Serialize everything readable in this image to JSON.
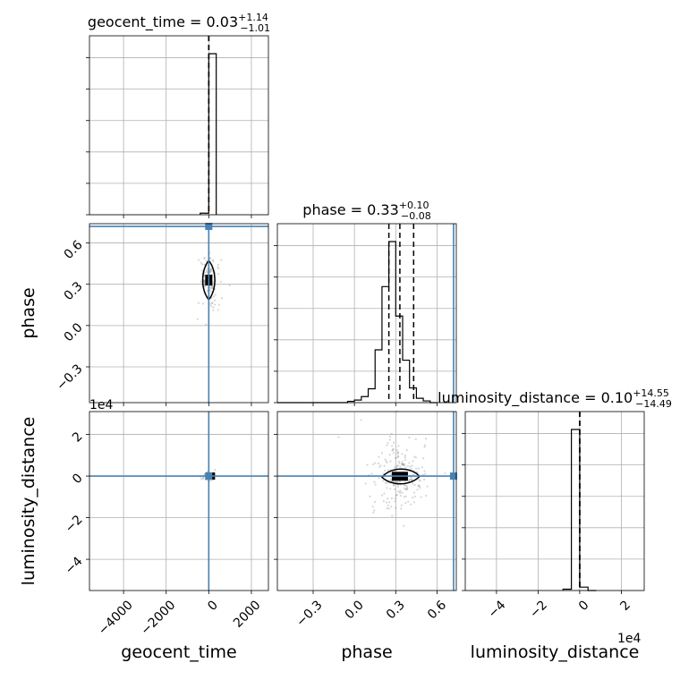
{
  "chart_data": {
    "type": "corner",
    "parameters": [
      {
        "key": "geocent_time",
        "label": "geocent_time",
        "title": {
          "name": "geocent_time",
          "median": "0.03",
          "plus": "+1.14",
          "minus": "−1.01"
        },
        "range": [
          -5600,
          2800
        ],
        "ticks": [
          -4000,
          -2000,
          0,
          2000
        ],
        "tick_labels": [
          "−4000",
          "−2000",
          "0",
          "2000"
        ],
        "truth": 0,
        "quantiles": [
          -1.01,
          0.03,
          1.14
        ],
        "hist": {
          "edges": [
            -400,
            0,
            350
          ],
          "counts": [
            0.05,
            5.05
          ]
        }
      },
      {
        "key": "phase",
        "label": "phase",
        "title": {
          "name": "phase",
          "median": "0.33",
          "plus": "+0.10",
          "minus": "−0.08"
        },
        "range": [
          -0.56,
          0.74
        ],
        "ticks": [
          -0.3,
          0.0,
          0.3,
          0.6
        ],
        "tick_labels": [
          "−0.3",
          "0.0",
          "0.3",
          "0.6"
        ],
        "truth": 0.72,
        "quantiles": [
          0.25,
          0.33,
          0.43
        ],
        "hist": {
          "edges": [
            -0.56,
            -0.05,
            0.0,
            0.05,
            0.1,
            0.15,
            0.2,
            0.25,
            0.3,
            0.35,
            0.4,
            0.45,
            0.5,
            0.55,
            0.6
          ],
          "counts": [
            0.0,
            0.03,
            0.06,
            0.14,
            0.32,
            1.22,
            2.68,
            3.72,
            2.0,
            0.98,
            0.34,
            0.1,
            0.04,
            0.0
          ]
        }
      },
      {
        "key": "luminosity_distance",
        "label": "luminosity_distance",
        "title": {
          "name": "luminosity_distance",
          "median": "0.10",
          "plus": "+14.55",
          "minus": "−14.49"
        },
        "offset": "1e4",
        "range": [
          -5.5,
          3.1
        ],
        "ticks": [
          -4,
          -2,
          0,
          2
        ],
        "tick_labels": [
          "−4",
          "−2",
          "0",
          "2"
        ],
        "truth": 0,
        "quantiles": [
          -0.0014,
          0.0,
          0.0015
        ],
        "hist": {
          "edges": [
            -0.8,
            -0.4,
            0.0,
            0.4,
            0.8
          ],
          "counts": [
            0.04,
            4.75,
            0.1,
            0.0
          ]
        }
      }
    ],
    "diagonal_y_ticks": 6,
    "truth_color": "#4682b4",
    "contours": [
      {
        "panel": "phase_vs_geocent_time",
        "center": [
          0,
          0.33
        ]
      },
      {
        "panel": "luminosity_distance_vs_geocent_time",
        "center": [
          0,
          0
        ]
      },
      {
        "panel": "luminosity_distance_vs_phase",
        "center": [
          0.33,
          -0.01
        ]
      }
    ],
    "grid": true
  }
}
